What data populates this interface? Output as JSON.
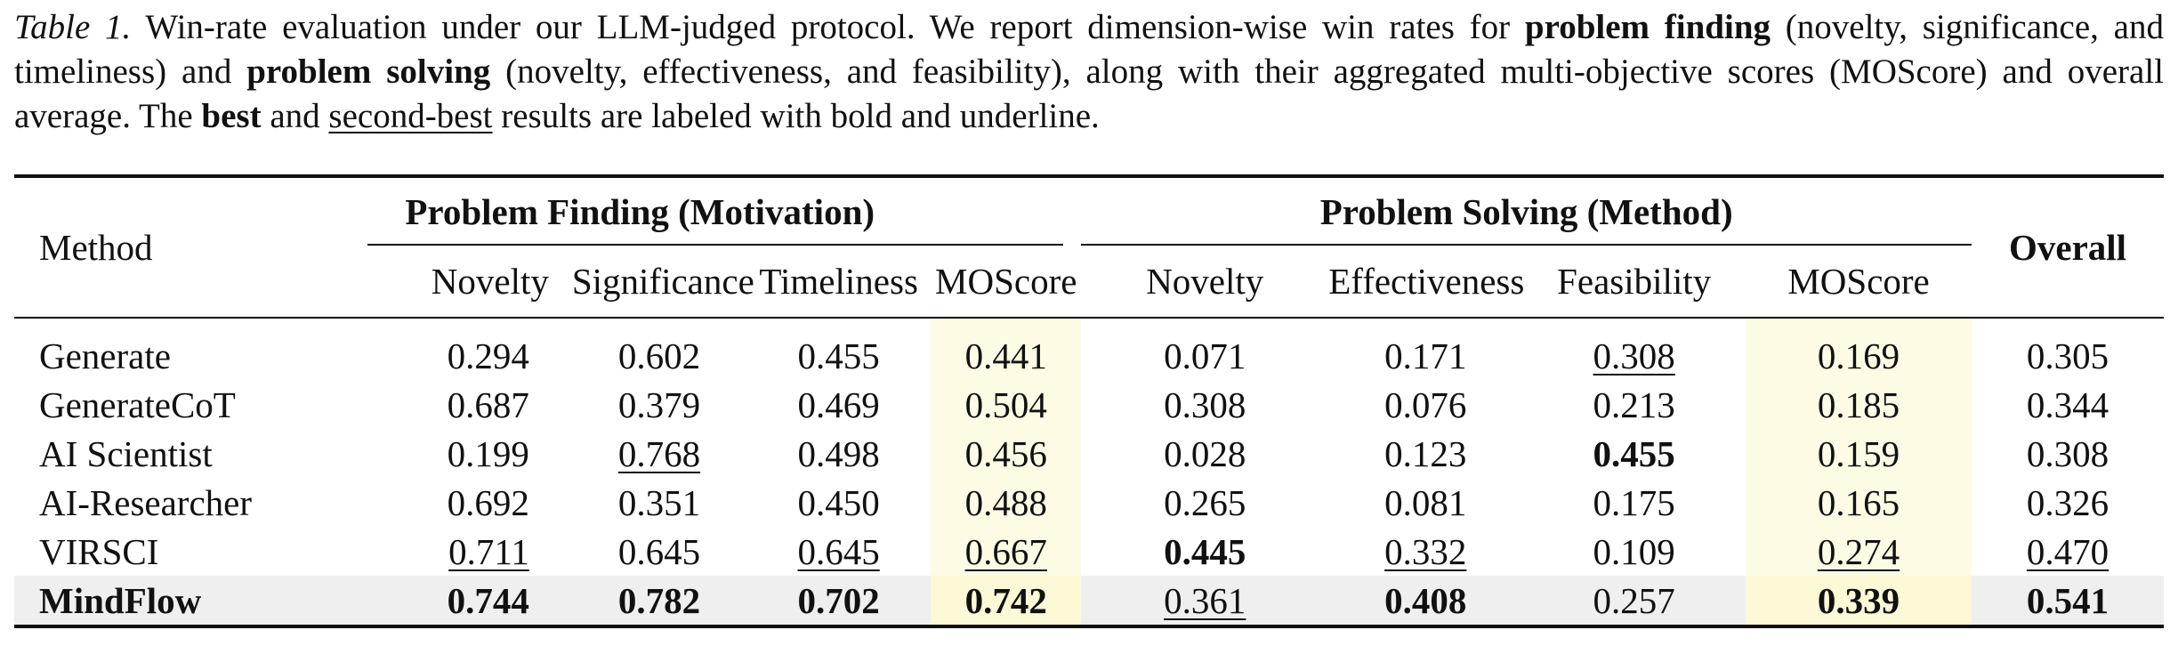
{
  "caption": {
    "label": "Table 1.",
    "part1": " Win-rate evaluation under our LLM-judged protocol. We report dimension-wise win rates for ",
    "bold1": "problem finding",
    "part2": " (novelty, significance, and timeliness) and ",
    "bold2": "problem solving",
    "part3": " (novelty, effectiveness, and feasibility), along with their aggregated multi-objective scores (MOScore) and overall average. The ",
    "bold3": "best",
    "part4": " and ",
    "underline1": "second-best",
    "part5": " results are labeled with bold and underline."
  },
  "table": {
    "method_header": "Method",
    "group_finding": "Problem Finding (Motivation)",
    "group_solving": "Problem Solving (Method)",
    "overall_header": "Overall",
    "subheaders": [
      "Novelty",
      "Significance",
      "Timeliness",
      "MOScore",
      "Novelty",
      "Effectiveness",
      "Feasibility",
      "MOScore"
    ],
    "rows": [
      {
        "method": "Generate",
        "values": [
          "0.294",
          "0.602",
          "0.455",
          "0.441",
          "0.071",
          "0.171",
          "0.308",
          "0.169",
          "0.305"
        ]
      },
      {
        "method": "GenerateCoT",
        "values": [
          "0.687",
          "0.379",
          "0.469",
          "0.504",
          "0.308",
          "0.076",
          "0.213",
          "0.185",
          "0.344"
        ]
      },
      {
        "method": "AI Scientist",
        "values": [
          "0.199",
          "0.768",
          "0.498",
          "0.456",
          "0.028",
          "0.123",
          "0.455",
          "0.159",
          "0.308"
        ]
      },
      {
        "method": "AI-Researcher",
        "values": [
          "0.692",
          "0.351",
          "0.450",
          "0.488",
          "0.265",
          "0.081",
          "0.175",
          "0.165",
          "0.326"
        ]
      },
      {
        "method": "VIRSCI",
        "values": [
          "0.711",
          "0.645",
          "0.645",
          "0.667",
          "0.445",
          "0.332",
          "0.109",
          "0.274",
          "0.470"
        ]
      },
      {
        "method": "MindFlow",
        "values": [
          "0.744",
          "0.782",
          "0.702",
          "0.742",
          "0.361",
          "0.408",
          "0.257",
          "0.339",
          "0.541"
        ]
      }
    ]
  }
}
